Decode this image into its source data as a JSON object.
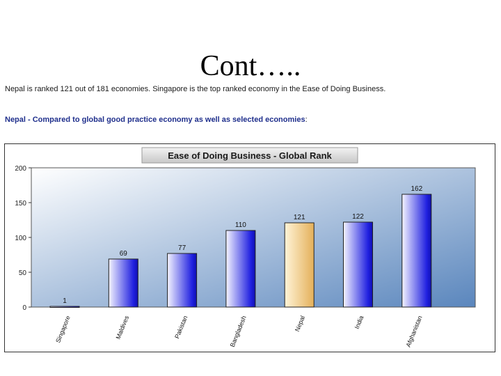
{
  "slide": {
    "title": "Cont…..",
    "intro": "Nepal is ranked 121 out of 181 economies. Singapore is the top ranked economy in the Ease of Doing Business.",
    "compare_label": "Nepal - Compared to global good practice economy as well as selected economies",
    "compare_suffix": ":"
  },
  "chart_data": {
    "type": "bar",
    "title": "Ease of Doing Business - Global Rank",
    "xlabel": "",
    "ylabel": "",
    "categories": [
      "Singapore",
      "Maldives",
      "Pakistan",
      "Bangladesh",
      "Nepal",
      "India",
      "Afghanistan"
    ],
    "values": [
      1,
      69,
      77,
      110,
      121,
      122,
      162
    ],
    "ylim": [
      0,
      200
    ],
    "yticks": [
      0,
      50,
      100,
      150,
      200
    ],
    "highlight": "Nepal",
    "colors": {
      "bar": "#2020e0",
      "bar_light": "#f4f4ff",
      "highlight": "#e4b05a",
      "highlight_light": "#fff4d8",
      "plot_top": "#ffffff",
      "plot_bottom": "#5a86bd",
      "title_box_top": "#f2f2f2",
      "title_box_bottom": "#c8c8c8"
    },
    "grid": false,
    "data_labels": true,
    "legend": "none"
  }
}
